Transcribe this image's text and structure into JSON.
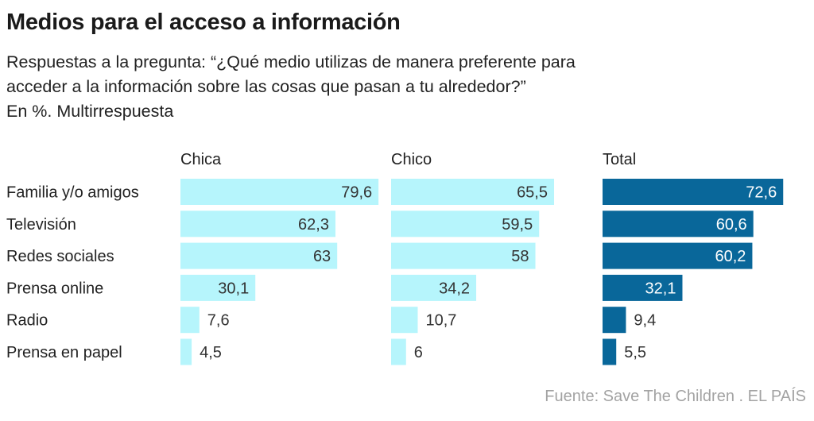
{
  "title": "Medios para el acceso a información",
  "subtitle_lines": [
    "Respuestas a la pregunta: “¿Qué medio utilizas de manera preferente para",
    "acceder a la información sobre las cosas que pasan a tu alrededor?”",
    "En %. Multirrespuesta"
  ],
  "source": "Fuente: Save The Children . EL PAÍS",
  "colors": {
    "light": "#b6f5fc",
    "dark": "#09679a",
    "text_dark": "#333333",
    "text_light": "#ffffff"
  },
  "chart_data": {
    "type": "bar",
    "orientation": "horizontal",
    "title": "Medios para el acceso a información",
    "unit": "%",
    "categories": [
      "Familia y/o amigos",
      "Televisión",
      "Redes sociales",
      "Prensa online",
      "Radio",
      "Prensa en papel"
    ],
    "series": [
      {
        "name": "Chica",
        "values": [
          79.6,
          62.3,
          63,
          30.1,
          7.6,
          4.5
        ],
        "labels": [
          "79,6",
          "62,3",
          "63",
          "30,1",
          "7,6",
          "4,5"
        ],
        "color": "#b6f5fc"
      },
      {
        "name": "Chico",
        "values": [
          65.5,
          59.5,
          58,
          34.2,
          10.7,
          6
        ],
        "labels": [
          "65,5",
          "59,5",
          "58",
          "34,2",
          "10,7",
          "6"
        ],
        "color": "#b6f5fc"
      },
      {
        "name": "Total",
        "values": [
          72.6,
          60.6,
          60.2,
          32.1,
          9.4,
          5.5
        ],
        "labels": [
          "72,6",
          "60,6",
          "60,2",
          "32,1",
          "9,4",
          "5,5"
        ],
        "color": "#09679a"
      }
    ],
    "xlim": [
      0,
      100
    ],
    "grid": false,
    "legend": "none"
  }
}
